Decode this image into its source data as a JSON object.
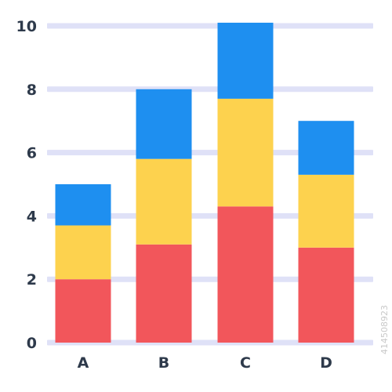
{
  "chart_data": {
    "type": "bar",
    "stacked": true,
    "categories": [
      "A",
      "B",
      "C",
      "D"
    ],
    "series": [
      {
        "color": "#f2565b",
        "values": [
          2.0,
          3.1,
          4.3,
          3.0
        ]
      },
      {
        "color": "#fdd24e",
        "values": [
          1.7,
          2.7,
          3.4,
          2.3
        ]
      },
      {
        "color": "#1e8ff0",
        "values": [
          1.3,
          2.2,
          2.4,
          1.7
        ]
      }
    ],
    "y_ticks": [
      "0",
      "2",
      "4",
      "6",
      "8",
      "10"
    ],
    "ylim": [
      0,
      10
    ],
    "grid": true,
    "grid_color": "#dfe1f7",
    "text_color": "#2e3a4b"
  },
  "watermark": "414508923"
}
